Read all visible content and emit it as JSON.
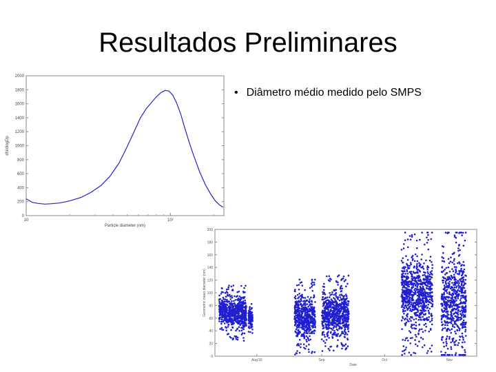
{
  "slide": {
    "title": "Resultados Preliminares",
    "bullet": "Diâmetro médio medido pelo SMPS"
  },
  "chart_data": [
    {
      "type": "line",
      "xlabel": "Particle diameter (nm)",
      "ylabel": "dN/dlogDp",
      "x_scale": "log",
      "ylim": [
        0,
        2000
      ],
      "yticks": [
        "0",
        "200",
        "400",
        "600",
        "800",
        "1000",
        "1200",
        "1400",
        "1600",
        "1800",
        "2000"
      ],
      "xticks": [
        "10",
        "10²"
      ],
      "color": "#2222cc",
      "x": [
        10,
        11,
        12,
        13.5,
        15,
        17,
        20,
        24,
        28,
        33,
        38,
        44,
        50,
        56,
        62,
        68,
        74,
        80,
        86,
        92,
        98,
        104,
        110,
        118,
        126,
        135,
        145,
        160,
        175,
        190,
        205,
        220,
        232
      ],
      "y": [
        240,
        190,
        175,
        165,
        170,
        180,
        210,
        260,
        330,
        430,
        560,
        750,
        980,
        1200,
        1400,
        1530,
        1620,
        1700,
        1760,
        1790,
        1780,
        1720,
        1620,
        1450,
        1250,
        1050,
        860,
        620,
        440,
        310,
        210,
        150,
        120
      ]
    },
    {
      "type": "scatter",
      "xlabel": "Date",
      "ylabel": "Geometric mean diameter (nm)",
      "xticks": [
        "Aug'10",
        "Sep",
        "Oct",
        "Nov"
      ],
      "xtick_days": [
        20,
        51,
        81,
        112
      ],
      "xlim_days": [
        0,
        125
      ],
      "ylim": [
        0,
        200
      ],
      "yticks": [
        "0",
        "20",
        "40",
        "60",
        "80",
        "100",
        "120",
        "140",
        "160",
        "180",
        "200"
      ],
      "color": "#1f1fd0",
      "clusters": [
        {
          "day_from": 2,
          "day_to": 6,
          "mean": 72,
          "spread": 18
        },
        {
          "day_from": 6,
          "day_to": 15,
          "mean": 68,
          "spread": 22
        },
        {
          "day_from": 16,
          "day_to": 18,
          "mean": 60,
          "spread": 12
        },
        {
          "day_from": 38,
          "day_to": 48,
          "mean": 62,
          "spread": 30
        },
        {
          "day_from": 51,
          "day_to": 64,
          "mean": 68,
          "spread": 30
        },
        {
          "day_from": 89,
          "day_to": 104,
          "mean": 100,
          "spread": 50
        },
        {
          "day_from": 108,
          "day_to": 120,
          "mean": 90,
          "spread": 60
        }
      ]
    }
  ]
}
